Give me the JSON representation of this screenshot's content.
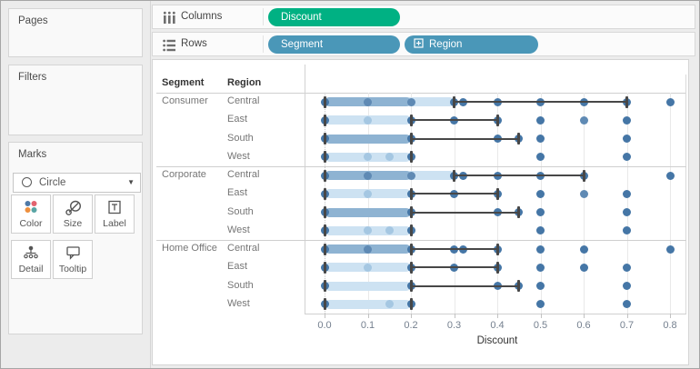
{
  "sidebar": {
    "pages_label": "Pages",
    "filters_label": "Filters",
    "marks_label": "Marks",
    "mark_type": "Circle",
    "buttons": [
      {
        "label": "Color"
      },
      {
        "label": "Size"
      },
      {
        "label": "Label"
      },
      {
        "label": "Detail"
      },
      {
        "label": "Tooltip"
      }
    ]
  },
  "shelves": {
    "columns": {
      "label": "Columns",
      "pill": "Discount"
    },
    "rows": {
      "label": "Rows",
      "pill_segment": "Segment",
      "pill_region": "Region"
    }
  },
  "colors": {
    "pill_green": "#00b183",
    "pill_blue": "#4a97b8",
    "dot_dark": "#4576a6",
    "dot_med": "#5f8ab4",
    "dot_light": "#a5c7e2",
    "band_dark": "#8eb3d2",
    "band_light": "#cde2f2",
    "whisker": "#474747",
    "icon_blue": "#4e79a7",
    "icon_red": "#e2636f",
    "icon_orange": "#ee8f3d",
    "icon_teal": "#59a5a5"
  },
  "chart_data": {
    "type": "scatter",
    "title": "",
    "xlabel": "Discount",
    "col_headers": [
      "Segment",
      "Region"
    ],
    "x_ticks": [
      "0.0",
      "0.1",
      "0.2",
      "0.3",
      "0.4",
      "0.5",
      "0.6",
      "0.7",
      "0.8"
    ],
    "x_range": [
      0,
      0.8
    ],
    "grid": true,
    "rows": [
      {
        "segment": "Consumer",
        "region": "Central",
        "band_light": [
          0,
          0.3
        ],
        "band_dark": [
          0,
          0.2
        ],
        "whisker": [
          0.3,
          0.7
        ],
        "caps": [
          0,
          0.3,
          0.7
        ],
        "dots": [
          [
            0,
            "d"
          ],
          [
            0.1,
            "m"
          ],
          [
            0.2,
            "m"
          ],
          [
            0.3,
            "d"
          ],
          [
            0.32,
            "d"
          ],
          [
            0.4,
            "d"
          ],
          [
            0.5,
            "d"
          ],
          [
            0.6,
            "d"
          ],
          [
            0.7,
            "d"
          ],
          [
            0.8,
            "d"
          ]
        ]
      },
      {
        "segment": "",
        "region": "East",
        "band_light": [
          0,
          0.2
        ],
        "band_dark": null,
        "whisker": [
          0.2,
          0.4
        ],
        "caps": [
          0,
          0.2,
          0.4
        ],
        "dots": [
          [
            0,
            "d"
          ],
          [
            0.1,
            "l"
          ],
          [
            0.2,
            "d"
          ],
          [
            0.3,
            "d"
          ],
          [
            0.4,
            "d"
          ],
          [
            0.5,
            "d"
          ],
          [
            0.6,
            "m"
          ],
          [
            0.7,
            "d"
          ]
        ]
      },
      {
        "segment": "",
        "region": "South",
        "band_light": null,
        "band_dark": [
          0,
          0.2
        ],
        "whisker": [
          0.2,
          0.45
        ],
        "caps": [
          0,
          0.2,
          0.45
        ],
        "dots": [
          [
            0,
            "d"
          ],
          [
            0.2,
            "d"
          ],
          [
            0.4,
            "d"
          ],
          [
            0.45,
            "d"
          ],
          [
            0.5,
            "d"
          ],
          [
            0.7,
            "d"
          ]
        ]
      },
      {
        "segment": "",
        "region": "West",
        "band_light": [
          0,
          0.2
        ],
        "band_dark": null,
        "whisker": null,
        "caps": [
          0,
          0.2
        ],
        "dots": [
          [
            0,
            "d"
          ],
          [
            0.1,
            "l"
          ],
          [
            0.15,
            "l"
          ],
          [
            0.2,
            "d"
          ],
          [
            0.5,
            "d"
          ],
          [
            0.7,
            "d"
          ]
        ]
      },
      {
        "segment": "Corporate",
        "region": "Central",
        "band_light": [
          0,
          0.3
        ],
        "band_dark": [
          0,
          0.2
        ],
        "whisker": [
          0.3,
          0.6
        ],
        "caps": [
          0,
          0.3,
          0.6
        ],
        "dots": [
          [
            0,
            "d"
          ],
          [
            0.1,
            "m"
          ],
          [
            0.2,
            "m"
          ],
          [
            0.3,
            "d"
          ],
          [
            0.32,
            "d"
          ],
          [
            0.4,
            "d"
          ],
          [
            0.5,
            "d"
          ],
          [
            0.6,
            "d"
          ],
          [
            0.8,
            "d"
          ]
        ]
      },
      {
        "segment": "",
        "region": "East",
        "band_light": [
          0,
          0.2
        ],
        "band_dark": null,
        "whisker": [
          0.2,
          0.4
        ],
        "caps": [
          0,
          0.2,
          0.4
        ],
        "dots": [
          [
            0,
            "d"
          ],
          [
            0.1,
            "l"
          ],
          [
            0.2,
            "d"
          ],
          [
            0.3,
            "d"
          ],
          [
            0.4,
            "d"
          ],
          [
            0.5,
            "d"
          ],
          [
            0.6,
            "m"
          ],
          [
            0.7,
            "d"
          ]
        ]
      },
      {
        "segment": "",
        "region": "South",
        "band_light": null,
        "band_dark": [
          0,
          0.2
        ],
        "whisker": [
          0.2,
          0.45
        ],
        "caps": [
          0,
          0.2,
          0.45
        ],
        "dots": [
          [
            0,
            "d"
          ],
          [
            0.2,
            "d"
          ],
          [
            0.4,
            "d"
          ],
          [
            0.45,
            "d"
          ],
          [
            0.5,
            "d"
          ],
          [
            0.7,
            "d"
          ]
        ]
      },
      {
        "segment": "",
        "region": "West",
        "band_light": [
          0,
          0.2
        ],
        "band_dark": null,
        "whisker": null,
        "caps": [
          0,
          0.2
        ],
        "dots": [
          [
            0,
            "d"
          ],
          [
            0.1,
            "l"
          ],
          [
            0.15,
            "l"
          ],
          [
            0.2,
            "d"
          ],
          [
            0.5,
            "d"
          ],
          [
            0.7,
            "d"
          ]
        ]
      },
      {
        "segment": "Home Office",
        "region": "Central",
        "band_light": null,
        "band_dark": [
          0,
          0.2
        ],
        "whisker": [
          0.2,
          0.4
        ],
        "caps": [
          0,
          0.2,
          0.4
        ],
        "dots": [
          [
            0,
            "d"
          ],
          [
            0.1,
            "m"
          ],
          [
            0.2,
            "d"
          ],
          [
            0.3,
            "d"
          ],
          [
            0.32,
            "d"
          ],
          [
            0.4,
            "d"
          ],
          [
            0.5,
            "d"
          ],
          [
            0.6,
            "d"
          ],
          [
            0.8,
            "d"
          ]
        ]
      },
      {
        "segment": "",
        "region": "East",
        "band_light": [
          0,
          0.2
        ],
        "band_dark": null,
        "whisker": [
          0.2,
          0.4
        ],
        "caps": [
          0,
          0.2,
          0.4
        ],
        "dots": [
          [
            0,
            "d"
          ],
          [
            0.1,
            "l"
          ],
          [
            0.2,
            "d"
          ],
          [
            0.3,
            "d"
          ],
          [
            0.4,
            "d"
          ],
          [
            0.5,
            "d"
          ],
          [
            0.6,
            "d"
          ],
          [
            0.7,
            "d"
          ]
        ]
      },
      {
        "segment": "",
        "region": "South",
        "band_light": [
          0,
          0.2
        ],
        "band_dark": null,
        "whisker": [
          0.2,
          0.45
        ],
        "caps": [
          0,
          0.2,
          0.45
        ],
        "dots": [
          [
            0,
            "d"
          ],
          [
            0.2,
            "d"
          ],
          [
            0.4,
            "d"
          ],
          [
            0.45,
            "d"
          ],
          [
            0.5,
            "d"
          ],
          [
            0.7,
            "d"
          ]
        ]
      },
      {
        "segment": "",
        "region": "West",
        "band_light": [
          0,
          0.2
        ],
        "band_dark": null,
        "whisker": null,
        "caps": [
          0,
          0.2
        ],
        "dots": [
          [
            0,
            "d"
          ],
          [
            0.15,
            "l"
          ],
          [
            0.2,
            "d"
          ],
          [
            0.5,
            "d"
          ],
          [
            0.7,
            "d"
          ]
        ]
      }
    ]
  }
}
